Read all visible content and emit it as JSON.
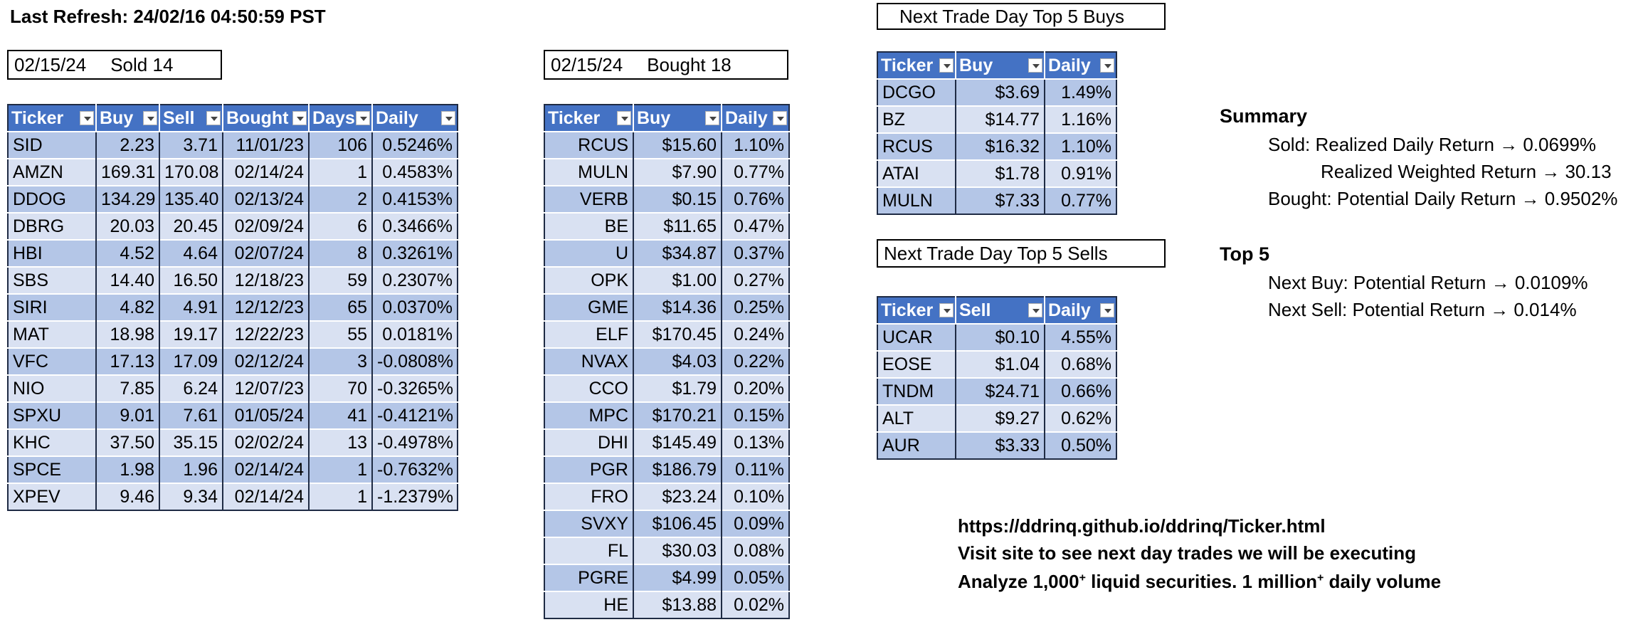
{
  "refresh": "Last Refresh: 24/02/16 04:50:59 PST",
  "sold_box": {
    "date": "02/15/24",
    "text": "Sold 14"
  },
  "bought_box": {
    "date": "02/15/24",
    "text": "Bought 18"
  },
  "sold_table": {
    "headers": [
      "Ticker",
      "Buy",
      "Sell",
      "Bought",
      "Days",
      "Daily"
    ],
    "rows": [
      [
        "SID",
        "2.23",
        "3.71",
        "11/01/23",
        "106",
        "0.5246%"
      ],
      [
        "AMZN",
        "169.31",
        "170.08",
        "02/14/24",
        "1",
        "0.4583%"
      ],
      [
        "DDOG",
        "134.29",
        "135.40",
        "02/13/24",
        "2",
        "0.4153%"
      ],
      [
        "DBRG",
        "20.03",
        "20.45",
        "02/09/24",
        "6",
        "0.3466%"
      ],
      [
        "HBI",
        "4.52",
        "4.64",
        "02/07/24",
        "8",
        "0.3261%"
      ],
      [
        "SBS",
        "14.40",
        "16.50",
        "12/18/23",
        "59",
        "0.2307%"
      ],
      [
        "SIRI",
        "4.82",
        "4.91",
        "12/12/23",
        "65",
        "0.0370%"
      ],
      [
        "MAT",
        "18.98",
        "19.17",
        "12/22/23",
        "55",
        "0.0181%"
      ],
      [
        "VFC",
        "17.13",
        "17.09",
        "02/12/24",
        "3",
        "-0.0808%"
      ],
      [
        "NIO",
        "7.85",
        "6.24",
        "12/07/23",
        "70",
        "-0.3265%"
      ],
      [
        "SPXU",
        "9.01",
        "7.61",
        "01/05/24",
        "41",
        "-0.4121%"
      ],
      [
        "KHC",
        "37.50",
        "35.15",
        "02/02/24",
        "13",
        "-0.4978%"
      ],
      [
        "SPCE",
        "1.98",
        "1.96",
        "02/14/24",
        "1",
        "-0.7632%"
      ],
      [
        "XPEV",
        "9.46",
        "9.34",
        "02/14/24",
        "1",
        "-1.2379%"
      ]
    ]
  },
  "bought_table": {
    "headers": [
      "Ticker",
      "Buy",
      "Daily"
    ],
    "rows": [
      [
        "RCUS",
        "$15.60",
        "1.10%"
      ],
      [
        "MULN",
        "$7.90",
        "0.77%"
      ],
      [
        "VERB",
        "$0.15",
        "0.76%"
      ],
      [
        "BE",
        "$11.65",
        "0.47%"
      ],
      [
        "U",
        "$34.87",
        "0.37%"
      ],
      [
        "OPK",
        "$1.00",
        "0.27%"
      ],
      [
        "GME",
        "$14.36",
        "0.25%"
      ],
      [
        "ELF",
        "$170.45",
        "0.24%"
      ],
      [
        "NVAX",
        "$4.03",
        "0.22%"
      ],
      [
        "CCO",
        "$1.79",
        "0.20%"
      ],
      [
        "MPC",
        "$170.21",
        "0.15%"
      ],
      [
        "DHI",
        "$145.49",
        "0.13%"
      ],
      [
        "PGR",
        "$186.79",
        "0.11%"
      ],
      [
        "FRO",
        "$23.24",
        "0.10%"
      ],
      [
        "SVXY",
        "$106.45",
        "0.09%"
      ],
      [
        "FL",
        "$30.03",
        "0.08%"
      ],
      [
        "PGRE",
        "$4.99",
        "0.05%"
      ],
      [
        "HE",
        "$13.88",
        "0.02%"
      ]
    ]
  },
  "top_buys": {
    "title": "Next Trade Day Top 5 Buys",
    "headers": [
      "Ticker",
      "Buy",
      "Daily"
    ],
    "rows": [
      [
        "DCGO",
        "$3.69",
        "1.49%"
      ],
      [
        "BZ",
        "$14.77",
        "1.16%"
      ],
      [
        "RCUS",
        "$16.32",
        "1.10%"
      ],
      [
        "ATAI",
        "$1.78",
        "0.91%"
      ],
      [
        "MULN",
        "$7.33",
        "0.77%"
      ]
    ]
  },
  "top_sells": {
    "title": "Next Trade Day Top 5 Sells",
    "headers": [
      "Ticker",
      "Sell",
      "Daily"
    ],
    "rows": [
      [
        "UCAR",
        "$0.10",
        "4.55%"
      ],
      [
        "EOSE",
        "$1.04",
        "0.68%"
      ],
      [
        "TNDM",
        "$24.71",
        "0.66%"
      ],
      [
        "ALT",
        "$9.27",
        "0.62%"
      ],
      [
        "AUR",
        "$3.33",
        "0.50%"
      ]
    ]
  },
  "summary": {
    "heading": "Summary",
    "line1": "Sold: Realized Daily Return → 0.0699%",
    "line2": "Realized Weighted Return → 30.13",
    "line3": "Bought: Potential Daily Return → 0.9502%"
  },
  "top5": {
    "heading": "Top 5",
    "line1": "Next Buy: Potential Return → 0.0109%",
    "line2": "Next Sell: Potential Return → 0.014%"
  },
  "site": {
    "url": "https://ddrinq.github.io/ddrinq/Ticker.html",
    "visit": "Visit site to see next day trades we will be executing",
    "analyze_a": "Analyze 1,000",
    "sup1": "+",
    "analyze_b": " liquid securities.  1 million",
    "sup2": "+",
    "analyze_c": " daily volume"
  }
}
